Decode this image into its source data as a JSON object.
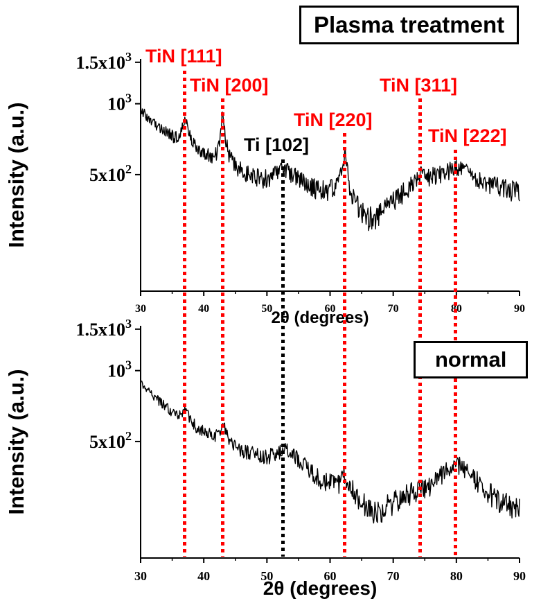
{
  "figure": {
    "background": "#ffffff",
    "trace_color": "#000000",
    "axis_color": "#000000",
    "peak_marker_red": "#ff0000",
    "peak_marker_black": "#000000"
  },
  "chart_data": [
    {
      "type": "line",
      "title": "Plasma treatment",
      "xlabel": "2θ (degrees)",
      "ylabel": "Intensity (a.u.)",
      "xlim": [
        30,
        90
      ],
      "xticks": [
        30,
        40,
        50,
        60,
        70,
        80,
        90
      ],
      "yticks": [
        {
          "value": 500,
          "label": "5x10",
          "sup": "2"
        },
        {
          "value": 1000,
          "label": "10",
          "sup": "3"
        },
        {
          "value": 1500,
          "label": "1.5x10",
          "sup": "3"
        }
      ],
      "yscale": {
        "type": "log",
        "render_min": 160,
        "render_max": 1550
      },
      "grid": false,
      "noise_amplitude": 45,
      "series": [
        {
          "name": "XRD intensity (plasma treatment)",
          "points": [
            [
              30,
              950
            ],
            [
              31,
              880
            ],
            [
              32,
              830
            ],
            [
              33,
              800
            ],
            [
              34,
              760
            ],
            [
              35,
              730
            ],
            [
              35.8,
              718
            ],
            [
              36.5,
              790
            ],
            [
              37,
              868
            ],
            [
              37.5,
              800
            ],
            [
              38,
              700
            ],
            [
              39,
              640
            ],
            [
              40,
              615
            ],
            [
              41,
              600
            ],
            [
              42,
              610
            ],
            [
              42.6,
              700
            ],
            [
              43,
              948
            ],
            [
              43.4,
              720
            ],
            [
              44,
              600
            ],
            [
              45,
              545
            ],
            [
              46,
              520
            ],
            [
              47,
              505
            ],
            [
              48,
              495
            ],
            [
              49,
              485
            ],
            [
              50,
              480
            ],
            [
              51,
              495
            ],
            [
              52,
              515
            ],
            [
              52.8,
              530
            ],
            [
              53.5,
              515
            ],
            [
              54.5,
              490
            ],
            [
              55.5,
              465
            ],
            [
              56.5,
              450
            ],
            [
              57.5,
              440
            ],
            [
              58.5,
              435
            ],
            [
              59.5,
              430
            ],
            [
              60.5,
              440
            ],
            [
              61.5,
              470
            ],
            [
              62.1,
              560
            ],
            [
              62.4,
              618
            ],
            [
              62.8,
              520
            ],
            [
              63.2,
              420
            ],
            [
              64,
              370
            ],
            [
              65,
              345
            ],
            [
              66,
              332
            ],
            [
              67,
              330
            ],
            [
              68,
              345
            ],
            [
              69,
              365
            ],
            [
              70,
              385
            ],
            [
              71,
              405
            ],
            [
              72,
              425
            ],
            [
              73,
              450
            ],
            [
              74,
              480
            ],
            [
              74.4,
              528
            ],
            [
              74.8,
              505
            ],
            [
              75.5,
              490
            ],
            [
              76.5,
              495
            ],
            [
              77.5,
              505
            ],
            [
              78.5,
              515
            ],
            [
              79.5,
              530
            ],
            [
              80.2,
              540
            ],
            [
              81,
              525
            ],
            [
              82,
              505
            ],
            [
              83,
              485
            ],
            [
              84,
              470
            ],
            [
              85,
              458
            ],
            [
              86,
              448
            ],
            [
              87,
              440
            ],
            [
              88,
              432
            ],
            [
              89,
              426
            ],
            [
              90,
              420
            ]
          ]
        }
      ]
    },
    {
      "type": "line",
      "title": "normal",
      "xlabel": "2θ (degrees)",
      "ylabel": "Intensity (a.u.)",
      "xlim": [
        30,
        90
      ],
      "xticks": [
        30,
        40,
        50,
        60,
        70,
        80,
        90
      ],
      "yticks": [
        {
          "value": 500,
          "label": "5x10",
          "sup": "2"
        },
        {
          "value": 1000,
          "label": "10",
          "sup": "3"
        },
        {
          "value": 1500,
          "label": "1.5x10",
          "sup": "3"
        }
      ],
      "yscale": {
        "type": "log",
        "render_min": 160,
        "render_max": 1550
      },
      "grid": false,
      "noise_amplitude": 34,
      "series": [
        {
          "name": "XRD intensity (normal)",
          "points": [
            [
              30,
              900
            ],
            [
              31,
              830
            ],
            [
              32,
              780
            ],
            [
              33,
              740
            ],
            [
              34,
              700
            ],
            [
              35,
              670
            ],
            [
              36,
              645
            ],
            [
              36.6,
              660
            ],
            [
              37,
              688
            ],
            [
              37.5,
              650
            ],
            [
              38,
              610
            ],
            [
              39,
              570
            ],
            [
              40,
              550
            ],
            [
              41,
              535
            ],
            [
              42,
              530
            ],
            [
              42.6,
              560
            ],
            [
              43,
              598
            ],
            [
              43.5,
              545
            ],
            [
              44,
              510
            ],
            [
              45,
              480
            ],
            [
              46,
              462
            ],
            [
              47,
              450
            ],
            [
              48,
              440
            ],
            [
              49,
              432
            ],
            [
              50,
              430
            ],
            [
              51,
              440
            ],
            [
              52,
              455
            ],
            [
              52.8,
              462
            ],
            [
              53.5,
              452
            ],
            [
              54.5,
              432
            ],
            [
              55.5,
              408
            ],
            [
              56.5,
              385
            ],
            [
              57.5,
              362
            ],
            [
              58.5,
              345
            ],
            [
              59.5,
              332
            ],
            [
              60.5,
              328
            ],
            [
              61.5,
              335
            ],
            [
              62.2,
              355
            ],
            [
              62.6,
              340
            ],
            [
              63.5,
              310
            ],
            [
              64.5,
              285
            ],
            [
              65.5,
              265
            ],
            [
              66.5,
              252
            ],
            [
              67.5,
              250
            ],
            [
              68.5,
              258
            ],
            [
              69.5,
              268
            ],
            [
              70.5,
              280
            ],
            [
              71.5,
              292
            ],
            [
              72.5,
              300
            ],
            [
              73.5,
              308
            ],
            [
              74.3,
              318
            ],
            [
              75,
              315
            ],
            [
              76,
              325
            ],
            [
              77,
              345
            ],
            [
              78,
              368
            ],
            [
              79,
              388
            ],
            [
              80,
              400
            ],
            [
              80.8,
              392
            ],
            [
              81.8,
              372
            ],
            [
              82.8,
              350
            ],
            [
              84,
              325
            ],
            [
              85,
              305
            ],
            [
              86,
              290
            ],
            [
              87,
              278
            ],
            [
              88,
              268
            ],
            [
              89,
              260
            ],
            [
              90,
              255
            ]
          ]
        }
      ]
    }
  ],
  "annotations": {
    "peak_markers": [
      {
        "label": "TiN [111]",
        "x_deg": 37.0,
        "color": "#ff0000",
        "style": "dotted"
      },
      {
        "label": "TiN [200]",
        "x_deg": 43.0,
        "color": "#ff0000",
        "style": "dotted"
      },
      {
        "label": "Ti [102]",
        "x_deg": 52.5,
        "color": "#000000",
        "style": "dotted"
      },
      {
        "label": "TiN [220]",
        "x_deg": 62.3,
        "color": "#ff0000",
        "style": "dotted"
      },
      {
        "label": "TiN [311]",
        "x_deg": 74.3,
        "color": "#ff0000",
        "style": "dotted"
      },
      {
        "label": "TiN [222]",
        "x_deg": 79.8,
        "color": "#ff0000",
        "style": "dotted"
      }
    ]
  }
}
